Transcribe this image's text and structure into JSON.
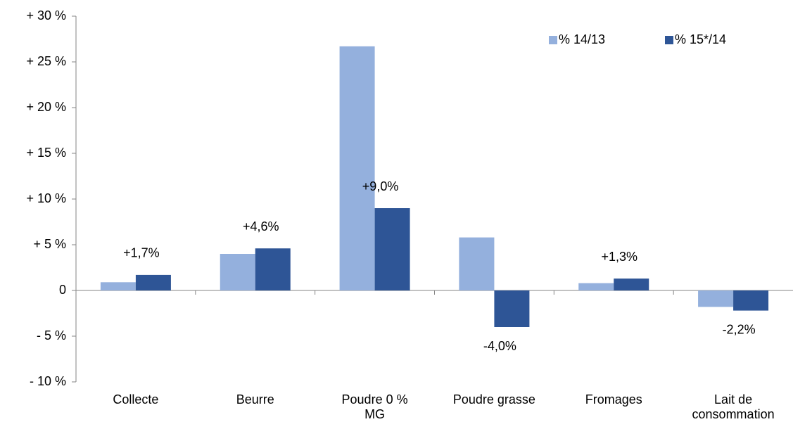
{
  "chart_data": {
    "type": "bar",
    "categories": [
      "Collecte",
      "Beurre",
      "Poudre 0 %\nMG",
      "Poudre grasse",
      "Fromages",
      "Lait de\nconsommation"
    ],
    "series": [
      {
        "name": "% 14/13",
        "color": "#94b0dd",
        "values": [
          0.9,
          4.0,
          26.7,
          5.8,
          0.8,
          -1.8
        ]
      },
      {
        "name": "% 15*/14",
        "color": "#2e5596",
        "values": [
          1.7,
          4.6,
          9.0,
          -4.0,
          1.3,
          -2.2
        ],
        "value_labels": [
          "+1,7%",
          "+4,6%",
          "+9,0%",
          "-4,0%",
          "+1,3%",
          "-2,2%"
        ]
      }
    ],
    "ylim": [
      -10,
      30
    ],
    "yticks": [
      {
        "value": -10,
        "label": "- 10 %"
      },
      {
        "value": -5,
        "label": "- 5 %"
      },
      0,
      {
        "value": 5,
        "label": "+ 5 %"
      },
      {
        "value": 10,
        "label": "+ 10 %"
      },
      {
        "value": 15,
        "label": "+ 15 %"
      },
      {
        "value": 20,
        "label": "+ 20 %"
      },
      {
        "value": 25,
        "label": "+ 25 %"
      },
      {
        "value": 30,
        "label": "+ 30 %"
      }
    ],
    "grid": false,
    "legend": "top-right"
  }
}
